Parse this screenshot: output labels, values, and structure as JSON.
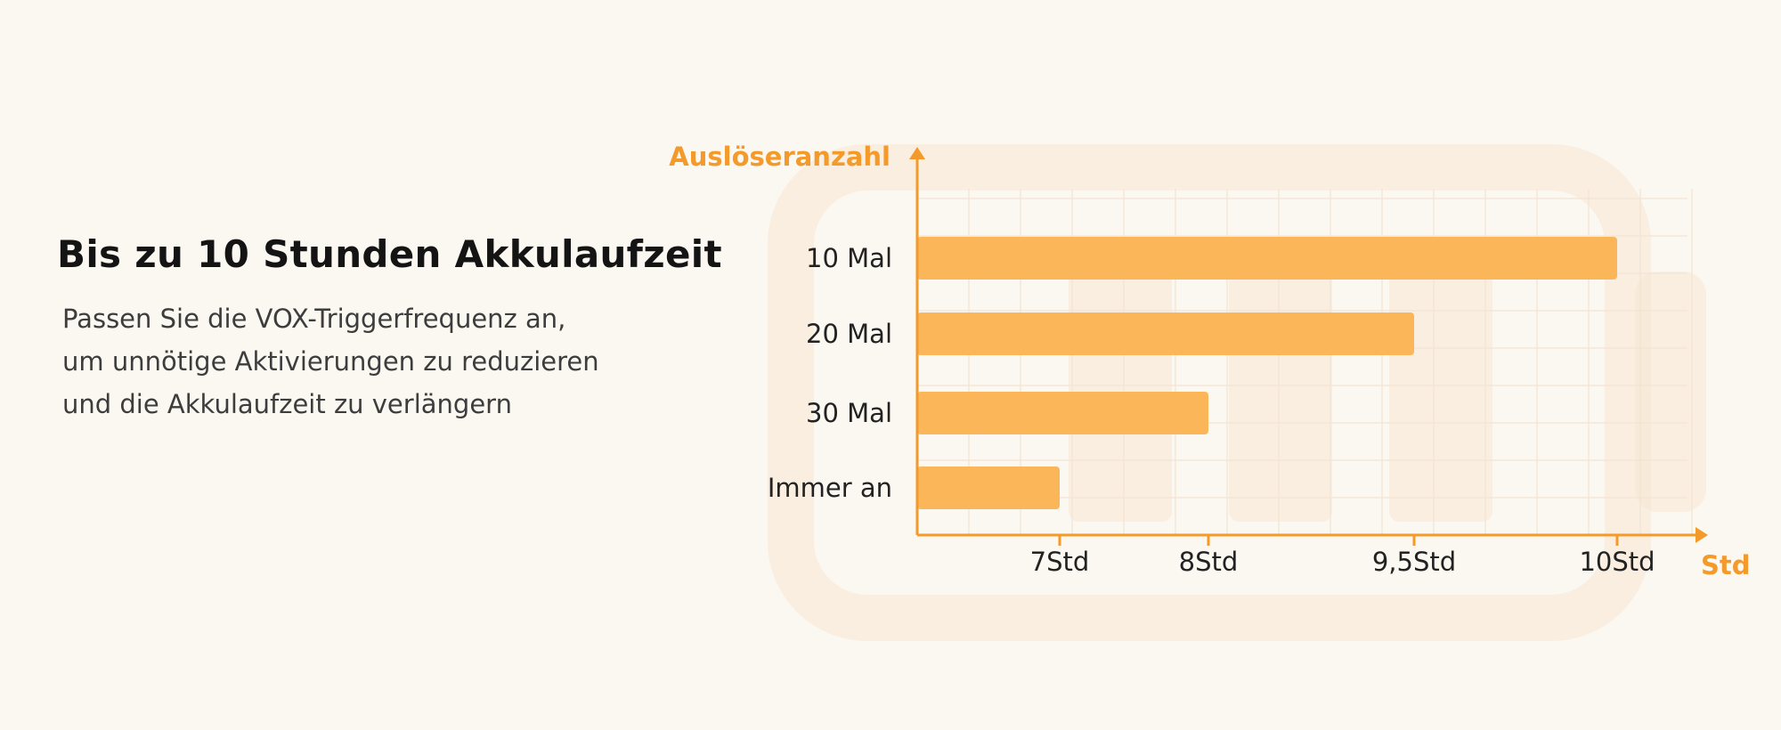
{
  "headline": "Bis zu 10 Stunden Akkulaufzeit",
  "body_lines": [
    "Passen Sie die VOX-Triggerfrequenz an,",
    "um unnötige Aktivierungen zu reduzieren",
    "und die Akkulaufzeit zu verlängern"
  ],
  "colors": {
    "background": "#fbf7f1",
    "accent": "#f39a2b",
    "bar": "#fbb65a"
  },
  "chart_data": {
    "type": "bar",
    "orientation": "horizontal",
    "xlabel": "Std",
    "ylabel": "Auslöseranzahl",
    "categories": [
      "10 Mal",
      "20 Mal",
      "30 Mal",
      "Immer an"
    ],
    "values": [
      10,
      9.5,
      8,
      7
    ],
    "x_ticks": [
      {
        "value": 7,
        "label": "7Std"
      },
      {
        "value": 8,
        "label": "8Std"
      },
      {
        "value": 9.5,
        "label": "9,5Std"
      },
      {
        "value": 10,
        "label": "10Std"
      }
    ],
    "grid": true,
    "legend": "none"
  }
}
